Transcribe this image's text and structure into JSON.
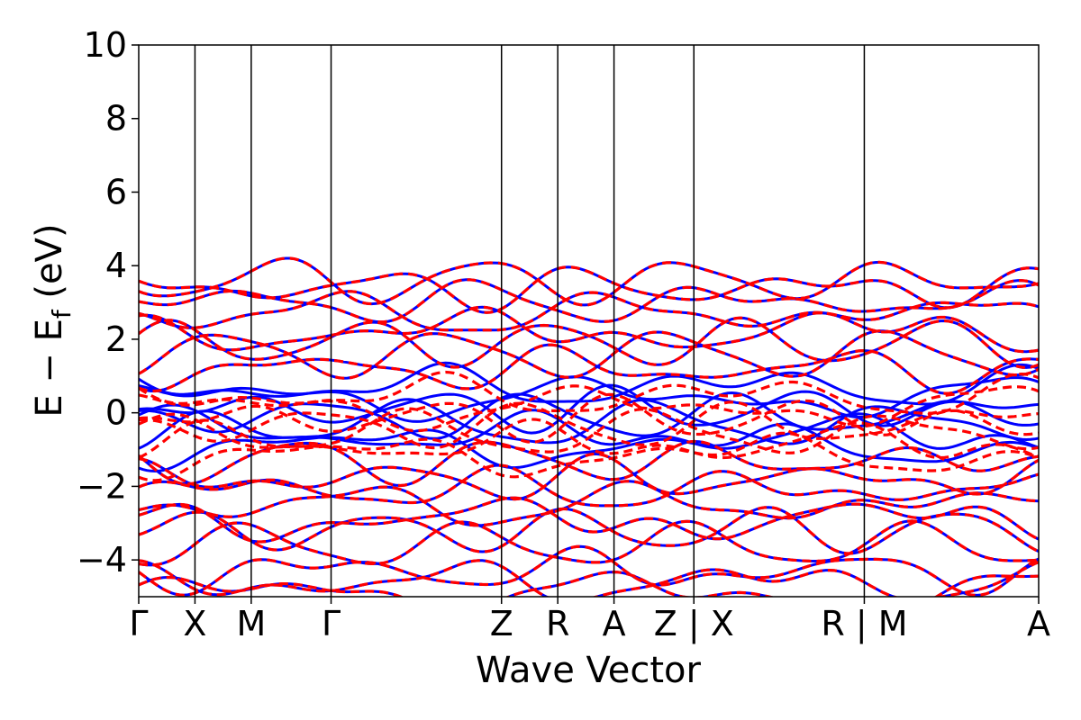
{
  "chart_data": {
    "type": "line",
    "title": "",
    "xlabel": "Wave Vector",
    "ylabel": "E − E",
    "ylabel_subscript": "f",
    "ylabel_unit": " (eV)",
    "ylim": [
      -5,
      10
    ],
    "yticks": [
      -4,
      -2,
      0,
      2,
      4,
      6,
      8,
      10
    ],
    "ytick_labels": [
      "−4",
      "−2",
      "0",
      "2",
      "4",
      "6",
      "8",
      "10"
    ],
    "xlim": [
      0,
      16
    ],
    "grid": false,
    "kpoints": [
      {
        "label": "Γ",
        "x": 0
      },
      {
        "label": "X",
        "x": 1
      },
      {
        "label": "M",
        "x": 2
      },
      {
        "label": "Γ",
        "x": 3.42
      },
      {
        "label": "Z",
        "x": 6.45
      },
      {
        "label": "R",
        "x": 7.45
      },
      {
        "label": "A",
        "x": 8.45
      },
      {
        "label": "Z | X",
        "x": 9.87
      },
      {
        "label": "R | M",
        "x": 12.9
      },
      {
        "label": "A",
        "x": 16
      }
    ],
    "series": [
      {
        "style": "solid",
        "color": "#0000ff"
      },
      {
        "style": "dashed",
        "color": "#ff0000"
      }
    ],
    "band_energies_at_gamma": [
      -4.9,
      -4.6,
      -4.3,
      -3.6,
      -3.2,
      -2.9,
      -2.5,
      -2.1,
      -1.8,
      -1.3,
      -0.9,
      -0.6,
      -0.3,
      -0.1,
      0.1,
      0.4,
      0.7,
      1.2,
      1.6,
      1.9,
      2.2,
      2.7,
      3.0,
      3.4,
      3.6
    ]
  }
}
